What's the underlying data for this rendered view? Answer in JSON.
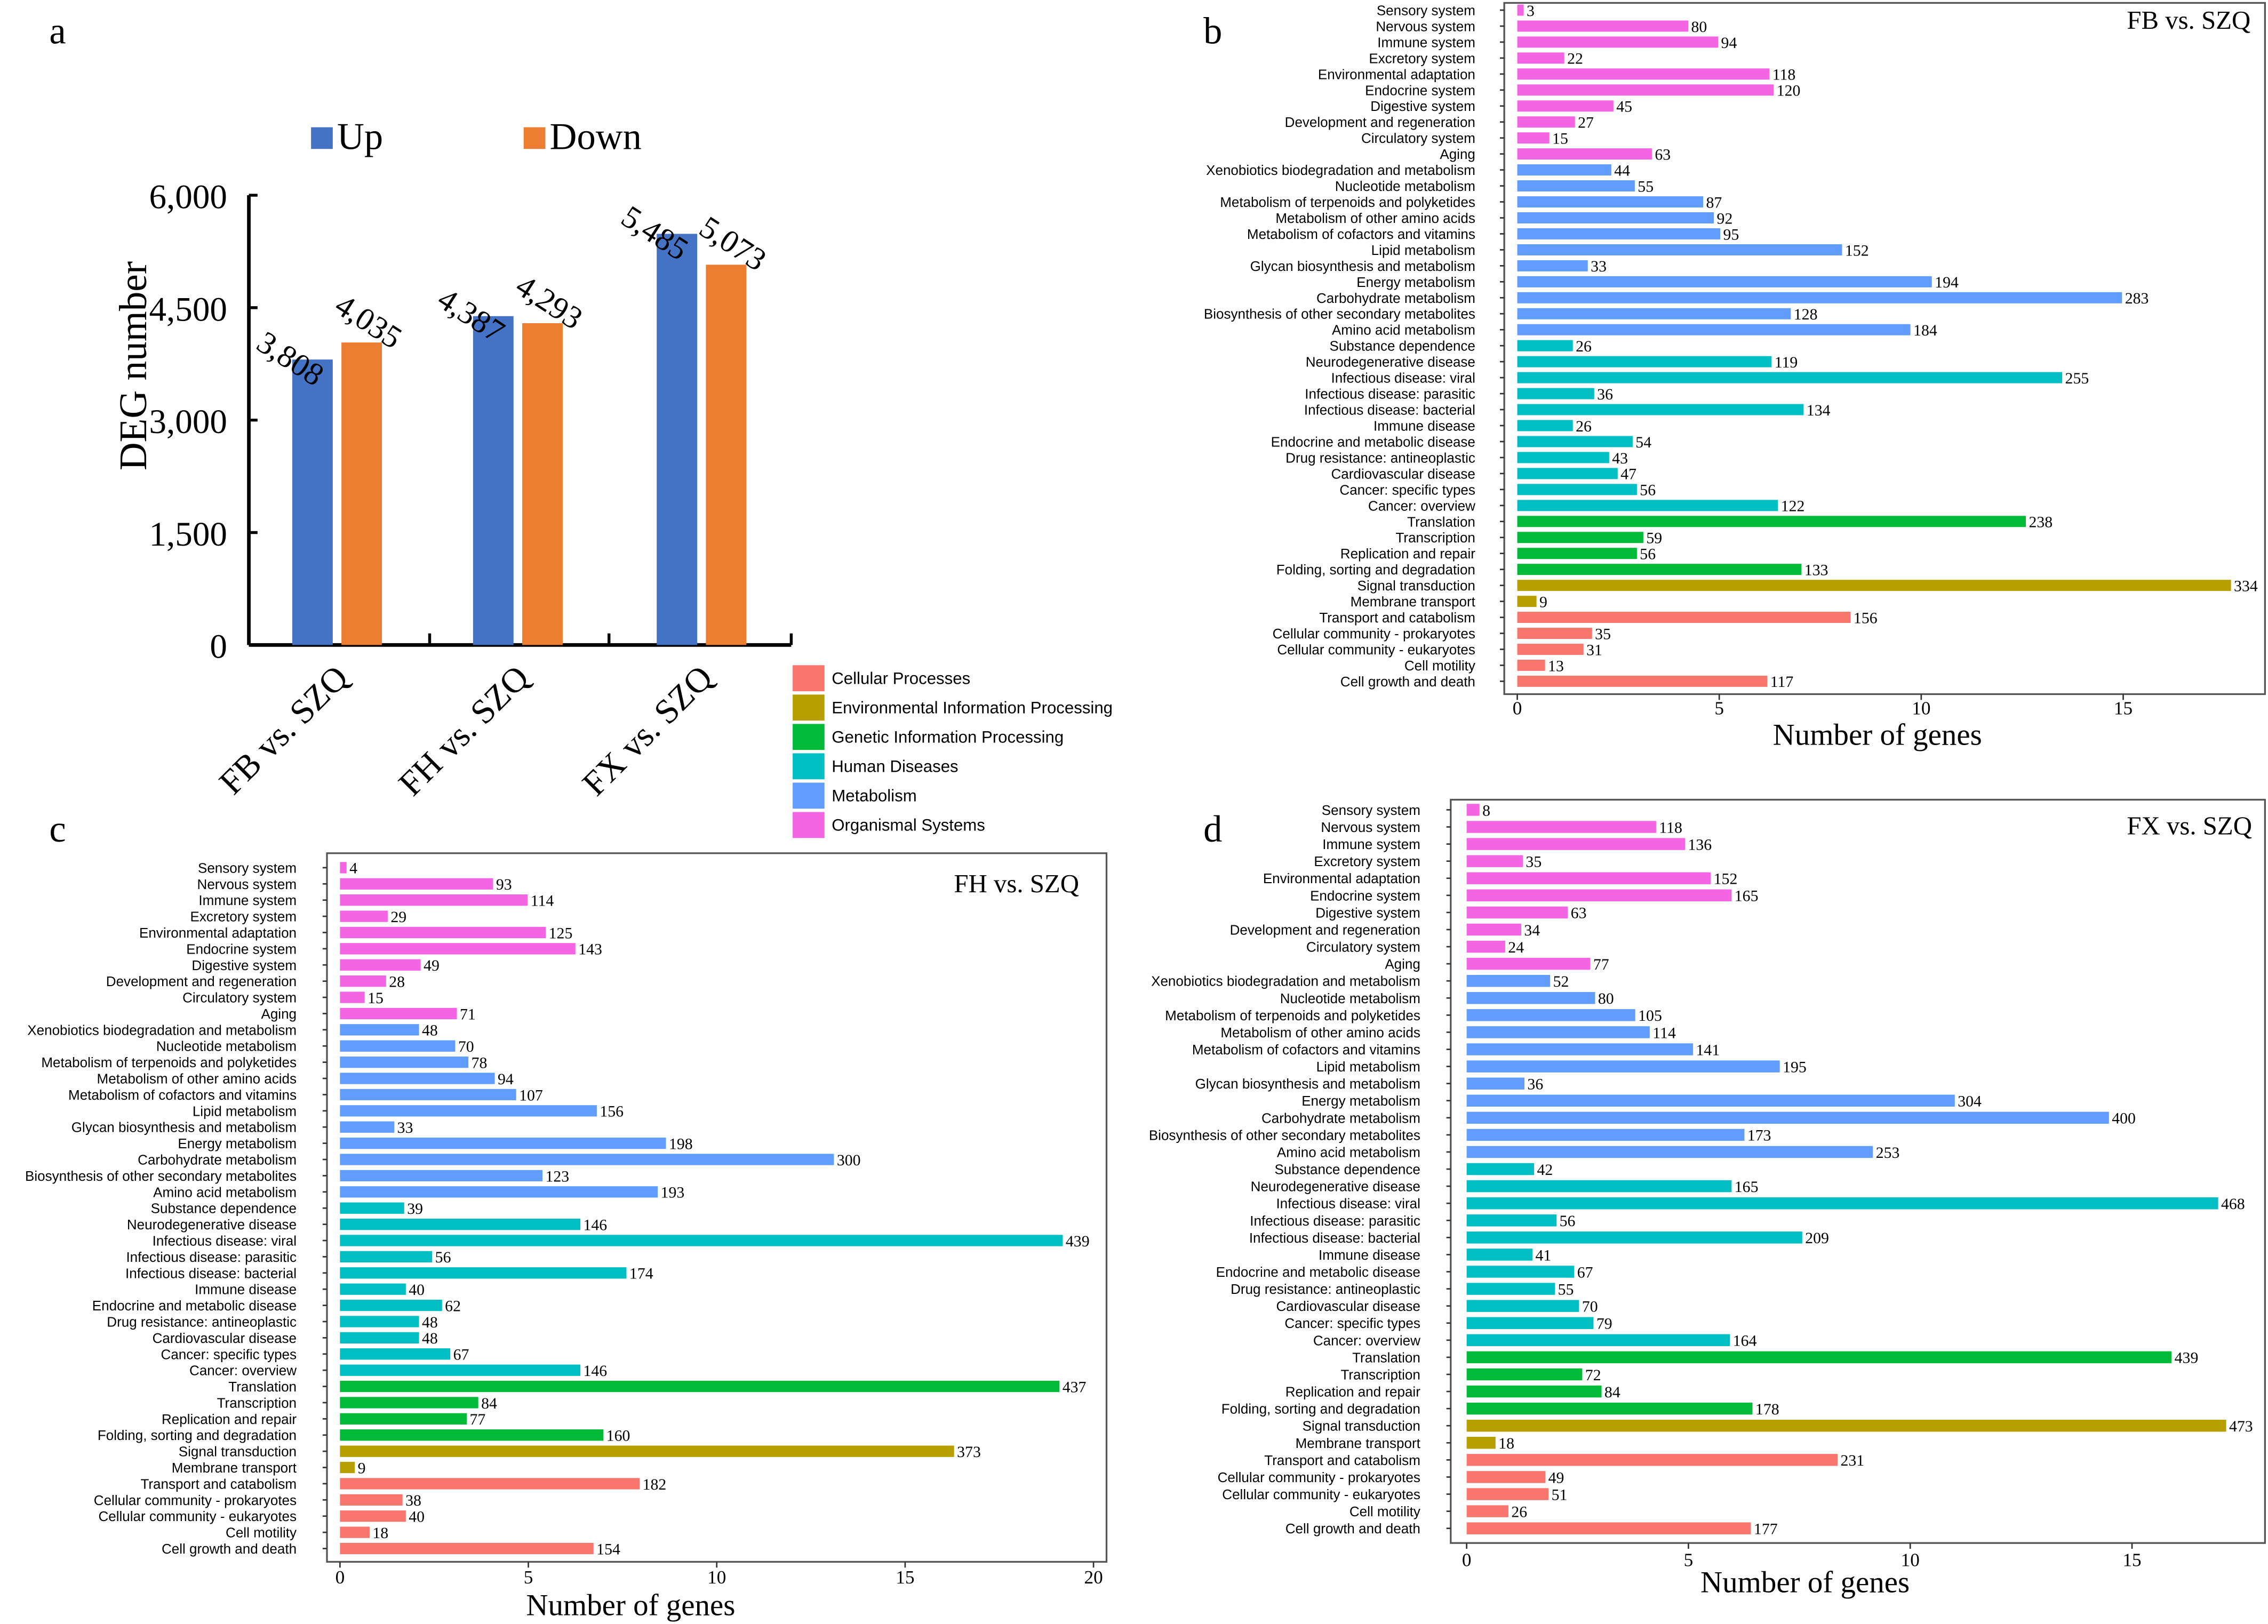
{
  "panel_letters": {
    "a": "a",
    "b": "b",
    "c": "c",
    "d": "d"
  },
  "category_groups": [
    {
      "name": "Cellular Processes",
      "color": "#f8766d"
    },
    {
      "name": "Environmental Information Processing",
      "color": "#b79f00"
    },
    {
      "name": "Genetic Information Processing",
      "color": "#00ba38"
    },
    {
      "name": "Human Diseases",
      "color": "#00bfc4"
    },
    {
      "name": "Metabolism",
      "color": "#619cff"
    },
    {
      "name": "Organismal Systems",
      "color": "#f564e3"
    }
  ],
  "pathways": [
    {
      "name": "Sensory system",
      "group": 5
    },
    {
      "name": "Nervous system",
      "group": 5
    },
    {
      "name": "Immune system",
      "group": 5
    },
    {
      "name": "Excretory system",
      "group": 5
    },
    {
      "name": "Environmental adaptation",
      "group": 5
    },
    {
      "name": "Endocrine system",
      "group": 5
    },
    {
      "name": "Digestive system",
      "group": 5
    },
    {
      "name": "Development and regeneration",
      "group": 5
    },
    {
      "name": "Circulatory system",
      "group": 5
    },
    {
      "name": "Aging",
      "group": 5
    },
    {
      "name": "Xenobiotics biodegradation and metabolism",
      "group": 4
    },
    {
      "name": "Nucleotide metabolism",
      "group": 4
    },
    {
      "name": "Metabolism of terpenoids and polyketides",
      "group": 4
    },
    {
      "name": "Metabolism of other amino acids",
      "group": 4
    },
    {
      "name": "Metabolism of cofactors and vitamins",
      "group": 4
    },
    {
      "name": "Lipid metabolism",
      "group": 4
    },
    {
      "name": "Glycan biosynthesis and metabolism",
      "group": 4
    },
    {
      "name": "Energy metabolism",
      "group": 4
    },
    {
      "name": "Carbohydrate metabolism",
      "group": 4
    },
    {
      "name": "Biosynthesis of other secondary metabolites",
      "group": 4
    },
    {
      "name": "Amino acid metabolism",
      "group": 4
    },
    {
      "name": "Substance dependence",
      "group": 3
    },
    {
      "name": "Neurodegenerative disease",
      "group": 3
    },
    {
      "name": "Infectious disease: viral",
      "group": 3
    },
    {
      "name": "Infectious disease: parasitic",
      "group": 3
    },
    {
      "name": "Infectious disease: bacterial",
      "group": 3
    },
    {
      "name": "Immune disease",
      "group": 3
    },
    {
      "name": "Endocrine and metabolic disease",
      "group": 3
    },
    {
      "name": "Drug resistance: antineoplastic",
      "group": 3
    },
    {
      "name": "Cardiovascular disease",
      "group": 3
    },
    {
      "name": "Cancer: specific types",
      "group": 3
    },
    {
      "name": "Cancer: overview",
      "group": 3
    },
    {
      "name": "Translation",
      "group": 2
    },
    {
      "name": "Transcription",
      "group": 2
    },
    {
      "name": "Replication and repair",
      "group": 2
    },
    {
      "name": "Folding, sorting and degradation",
      "group": 2
    },
    {
      "name": "Signal transduction",
      "group": 1
    },
    {
      "name": "Membrane transport",
      "group": 1
    },
    {
      "name": "Transport and catabolism",
      "group": 0
    },
    {
      "name": "Cellular community - prokaryotes",
      "group": 0
    },
    {
      "name": "Cellular community - eukaryotes",
      "group": 0
    },
    {
      "name": "Cell motility",
      "group": 0
    },
    {
      "name": "Cell growth and death",
      "group": 0
    }
  ],
  "chart_data": [
    {
      "panel": "a",
      "type": "bar",
      "categories": [
        "FB vs. SZQ",
        "FH vs. SZQ",
        "FX vs. SZQ"
      ],
      "series": [
        {
          "name": "Up",
          "color": "#4472c4",
          "values": [
            3808,
            4387,
            5485
          ],
          "labels": [
            "3,808",
            "4,387",
            "5,485"
          ]
        },
        {
          "name": "Down",
          "color": "#ed7d31",
          "values": [
            4035,
            4293,
            5073
          ],
          "labels": [
            "4,035",
            "4,293",
            "5,073"
          ]
        }
      ],
      "ylabel": "DEG number",
      "ylim": [
        0,
        6000
      ],
      "yticks": [
        0,
        1500,
        3000,
        4500,
        6000
      ],
      "ytick_labels": [
        "0",
        "1,500",
        "3,000",
        "4,500",
        "6,000"
      ],
      "legend": "top"
    },
    {
      "panel": "b",
      "type": "bar",
      "orientation": "horizontal",
      "title": "FB vs. SZQ",
      "xlabel": "Number of genes",
      "xticks": [
        0,
        5,
        10,
        15
      ],
      "xlim": [
        -0.3,
        18.5
      ],
      "values": [
        3,
        80,
        94,
        22,
        118,
        120,
        45,
        27,
        15,
        63,
        44,
        55,
        87,
        92,
        95,
        152,
        33,
        194,
        283,
        128,
        184,
        26,
        119,
        255,
        36,
        134,
        26,
        54,
        43,
        47,
        56,
        122,
        238,
        59,
        56,
        133,
        334,
        9,
        156,
        35,
        31,
        13,
        117
      ]
    },
    {
      "panel": "c",
      "type": "bar",
      "orientation": "horizontal",
      "title": "FH vs. SZQ",
      "xlabel": "Number of genes",
      "xticks": [
        0,
        5,
        10,
        15,
        20
      ],
      "xlim": [
        -0.3,
        20.5
      ],
      "values": [
        4,
        93,
        114,
        29,
        125,
        143,
        49,
        28,
        15,
        71,
        48,
        70,
        78,
        94,
        107,
        156,
        33,
        198,
        300,
        123,
        193,
        39,
        146,
        439,
        56,
        174,
        40,
        62,
        48,
        48,
        67,
        146,
        437,
        84,
        77,
        160,
        373,
        9,
        182,
        38,
        40,
        18,
        154
      ]
    },
    {
      "panel": "d",
      "type": "bar",
      "orientation": "horizontal",
      "title": "FX vs. SZQ",
      "xlabel": "Number of genes",
      "xticks": [
        0,
        5,
        10,
        15
      ],
      "xlim": [
        -0.4,
        18
      ],
      "values": [
        8,
        118,
        136,
        35,
        152,
        165,
        63,
        34,
        24,
        77,
        52,
        80,
        105,
        114,
        141,
        195,
        36,
        304,
        400,
        173,
        253,
        42,
        165,
        468,
        56,
        209,
        41,
        67,
        55,
        70,
        79,
        164,
        439,
        72,
        84,
        178,
        473,
        18,
        231,
        49,
        51,
        26,
        177
      ]
    }
  ]
}
